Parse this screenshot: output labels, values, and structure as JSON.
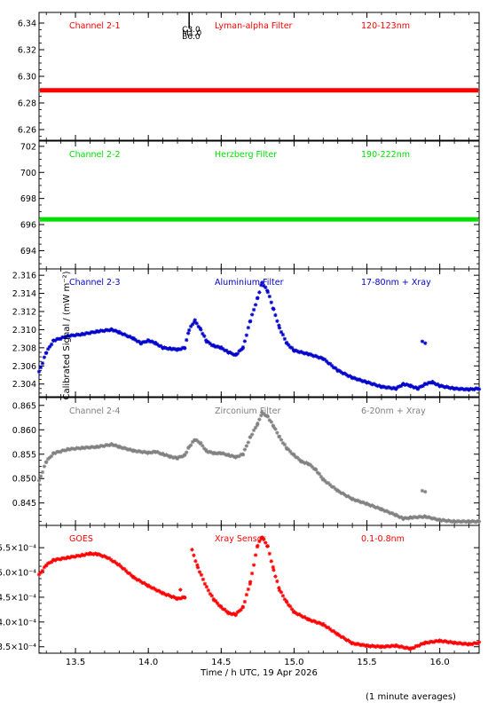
{
  "figure": {
    "ylabel": "Calibrated Signal / (mW m⁻²)",
    "xlabel": "Time / h UTC, 19 Apr 2026",
    "xlim": [
      13.25,
      16.27
    ],
    "xticks": [
      13.5,
      14.0,
      14.5,
      15.0,
      15.5,
      16.0
    ],
    "xtick_labels": [
      "13.5",
      "14.0",
      "14.5",
      "15.0",
      "15.5",
      "16.0"
    ],
    "footer": "(1 minute averages)",
    "marker_annotation": {
      "x": 14.28,
      "lines": [
        "C3.0",
        "M1.0",
        "B6.0"
      ],
      "color": "#000000"
    }
  },
  "chart_data": [
    {
      "type": "scatter",
      "channel": "Channel 2-1",
      "filter": "Lyman-alpha Filter",
      "band": "120-123nm",
      "color": "#ff0000",
      "ylim": [
        6.252,
        6.348
      ],
      "yticks": [
        6.26,
        6.28,
        6.3,
        6.32,
        6.34
      ],
      "ytick_labels": [
        "6.26",
        "6.28",
        "6.30",
        "6.32",
        "6.34"
      ],
      "points": [
        [
          13.25,
          6.2895
        ],
        [
          16.27,
          6.2895
        ]
      ],
      "style": "flat"
    },
    {
      "type": "scatter",
      "channel": "Channel 2-2",
      "filter": "Herzberg Filter",
      "band": "190-222nm",
      "color": "#00e000",
      "ylim": [
        692.6,
        702.4
      ],
      "yticks": [
        694,
        696,
        698,
        700,
        702
      ],
      "ytick_labels": [
        "694",
        "696",
        "698",
        "700",
        "702"
      ],
      "points": [
        [
          13.25,
          696.4
        ],
        [
          16.27,
          696.4
        ]
      ],
      "style": "flat"
    },
    {
      "type": "scatter",
      "channel": "Channel 2-3",
      "filter": "Aluminium Filter",
      "band": "17-80nm + Xray",
      "color": "#0000cc",
      "ylim": [
        2.3026,
        2.3167
      ],
      "yticks": [
        2.304,
        2.306,
        2.308,
        2.31,
        2.312,
        2.314,
        2.316
      ],
      "ytick_labels": [
        "2.304",
        "2.306",
        "2.308",
        "2.310",
        "2.312",
        "2.314",
        "2.316"
      ],
      "points": [
        [
          13.25,
          2.3053
        ],
        [
          13.3,
          2.3075
        ],
        [
          13.35,
          2.3088
        ],
        [
          13.45,
          2.3093
        ],
        [
          13.55,
          2.3095
        ],
        [
          13.65,
          2.3098
        ],
        [
          13.75,
          2.31
        ],
        [
          13.8,
          2.3097
        ],
        [
          13.9,
          2.309
        ],
        [
          13.95,
          2.3085
        ],
        [
          14.0,
          2.3088
        ],
        [
          14.05,
          2.3085
        ],
        [
          14.1,
          2.308
        ],
        [
          14.15,
          2.3079
        ],
        [
          14.2,
          2.3078
        ],
        [
          14.25,
          2.308
        ],
        [
          14.28,
          2.31
        ],
        [
          14.32,
          2.311
        ],
        [
          14.36,
          2.31
        ],
        [
          14.4,
          2.3087
        ],
        [
          14.45,
          2.3082
        ],
        [
          14.5,
          2.308
        ],
        [
          14.55,
          2.3075
        ],
        [
          14.6,
          2.3072
        ],
        [
          14.65,
          2.308
        ],
        [
          14.7,
          2.311
        ],
        [
          14.75,
          2.3135
        ],
        [
          14.78,
          2.3152
        ],
        [
          14.82,
          2.3142
        ],
        [
          14.86,
          2.3122
        ],
        [
          14.9,
          2.3102
        ],
        [
          14.95,
          2.3085
        ],
        [
          15.0,
          2.3077
        ],
        [
          15.1,
          2.3073
        ],
        [
          15.2,
          2.3068
        ],
        [
          15.3,
          2.3055
        ],
        [
          15.4,
          2.3047
        ],
        [
          15.5,
          2.3042
        ],
        [
          15.6,
          2.3037
        ],
        [
          15.7,
          2.3035
        ],
        [
          15.75,
          2.304
        ],
        [
          15.8,
          2.3038
        ],
        [
          15.85,
          2.3035
        ],
        [
          15.9,
          2.304
        ],
        [
          15.95,
          2.3042
        ],
        [
          16.0,
          2.3038
        ],
        [
          16.1,
          2.3035
        ],
        [
          16.2,
          2.3034
        ],
        [
          16.27,
          2.3035
        ]
      ],
      "outliers": [
        [
          15.88,
          2.3087
        ],
        [
          15.9,
          2.3085
        ]
      ],
      "style": "curve"
    },
    {
      "type": "scatter",
      "channel": "Channel 2-4",
      "filter": "Zirconium Filter",
      "band": "6-20nm + Xray",
      "color": "#808080",
      "ylim": [
        0.8404,
        0.8666
      ],
      "yticks": [
        0.845,
        0.85,
        0.855,
        0.86,
        0.865
      ],
      "ytick_labels": [
        "0.845",
        "0.850",
        "0.855",
        "0.860",
        "0.865"
      ],
      "points": [
        [
          13.25,
          0.8495
        ],
        [
          13.3,
          0.8535
        ],
        [
          13.35,
          0.8552
        ],
        [
          13.45,
          0.856
        ],
        [
          13.55,
          0.8563
        ],
        [
          13.65,
          0.8565
        ],
        [
          13.75,
          0.857
        ],
        [
          13.8,
          0.8565
        ],
        [
          13.9,
          0.8557
        ],
        [
          14.0,
          0.8553
        ],
        [
          14.05,
          0.8555
        ],
        [
          14.1,
          0.855
        ],
        [
          14.15,
          0.8545
        ],
        [
          14.2,
          0.8542
        ],
        [
          14.25,
          0.8548
        ],
        [
          14.28,
          0.8565
        ],
        [
          14.32,
          0.858
        ],
        [
          14.36,
          0.8572
        ],
        [
          14.4,
          0.8556
        ],
        [
          14.45,
          0.8552
        ],
        [
          14.5,
          0.8552
        ],
        [
          14.55,
          0.8548
        ],
        [
          14.6,
          0.8544
        ],
        [
          14.65,
          0.855
        ],
        [
          14.7,
          0.8585
        ],
        [
          14.75,
          0.8612
        ],
        [
          14.78,
          0.8635
        ],
        [
          14.82,
          0.8627
        ],
        [
          14.86,
          0.8607
        ],
        [
          14.9,
          0.8585
        ],
        [
          14.95,
          0.8562
        ],
        [
          15.0,
          0.8548
        ],
        [
          15.05,
          0.8535
        ],
        [
          15.1,
          0.853
        ],
        [
          15.15,
          0.8518
        ],
        [
          15.2,
          0.8498
        ],
        [
          15.3,
          0.8475
        ],
        [
          15.4,
          0.8458
        ],
        [
          15.5,
          0.8448
        ],
        [
          15.6,
          0.8437
        ],
        [
          15.7,
          0.8425
        ],
        [
          15.75,
          0.8418
        ],
        [
          15.8,
          0.842
        ],
        [
          15.9,
          0.8422
        ],
        [
          16.0,
          0.8415
        ],
        [
          16.1,
          0.8412
        ],
        [
          16.2,
          0.8412
        ],
        [
          16.27,
          0.8412
        ]
      ],
      "outliers": [
        [
          15.88,
          0.8475
        ],
        [
          15.9,
          0.8473
        ]
      ],
      "style": "curve"
    },
    {
      "type": "scatter",
      "channel": "GOES",
      "filter": "Xray Sensor",
      "band": "0.1-0.8nm",
      "color": "#ff0000",
      "ylim": [
        0.000337,
        0.000595
      ],
      "yticks": [
        0.00035,
        0.0004,
        0.00045,
        0.0005,
        0.00055
      ],
      "ytick_labels": [
        "3.5×10⁻⁴",
        "4.0×10⁻⁴",
        "4.5×10⁻⁴",
        "5.0×10⁻⁴",
        "5.5×10⁻⁴"
      ],
      "points": [
        [
          13.25,
          0.000495
        ],
        [
          13.3,
          0.000515
        ],
        [
          13.35,
          0.000525
        ],
        [
          13.45,
          0.00053
        ],
        [
          13.55,
          0.000535
        ],
        [
          13.6,
          0.000538
        ],
        [
          13.65,
          0.000537
        ],
        [
          13.72,
          0.00053
        ],
        [
          13.8,
          0.000515
        ],
        [
          13.9,
          0.00049
        ],
        [
          14.0,
          0.000473
        ],
        [
          14.1,
          0.000458
        ],
        [
          14.2,
          0.000447
        ],
        [
          14.25,
          0.00045
        ]
      ],
      "points_b": [
        [
          14.3,
          0.000545
        ],
        [
          14.34,
          0.00051
        ],
        [
          14.4,
          0.00047
        ],
        [
          14.45,
          0.000445
        ],
        [
          14.5,
          0.00043
        ],
        [
          14.55,
          0.000418
        ],
        [
          14.6,
          0.000415
        ],
        [
          14.65,
          0.00043
        ],
        [
          14.7,
          0.00048
        ],
        [
          14.75,
          0.000555
        ],
        [
          14.78,
          0.000572
        ],
        [
          14.82,
          0.000552
        ],
        [
          14.86,
          0.000505
        ],
        [
          14.9,
          0.000465
        ],
        [
          14.95,
          0.00044
        ],
        [
          15.0,
          0.00042
        ],
        [
          15.1,
          0.000405
        ],
        [
          15.2,
          0.000395
        ],
        [
          15.3,
          0.000375
        ],
        [
          15.4,
          0.000357
        ],
        [
          15.5,
          0.000352
        ],
        [
          15.6,
          0.00035
        ],
        [
          15.7,
          0.000352
        ],
        [
          15.8,
          0.000346
        ],
        [
          15.9,
          0.000358
        ],
        [
          16.0,
          0.000362
        ],
        [
          16.1,
          0.000358
        ],
        [
          16.2,
          0.000355
        ],
        [
          16.27,
          0.000358
        ]
      ],
      "outliers": [
        [
          14.22,
          0.000465
        ]
      ],
      "style": "curve"
    }
  ]
}
